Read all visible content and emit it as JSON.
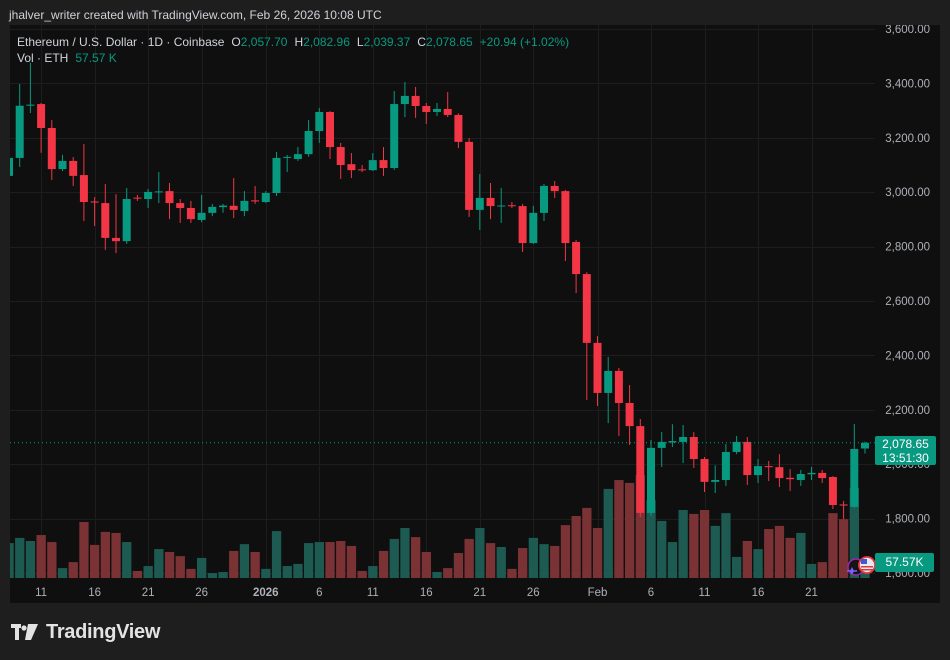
{
  "header": {
    "attribution": "jhalver_writer created with TradingView.com, Feb 26, 2026 10:08 UTC"
  },
  "legend": {
    "symbol": "Ethereum / U.S. Dollar · 1D · Coinbase",
    "o_label": "O",
    "o_value": "2,057.70",
    "h_label": "H",
    "h_value": "2,082.96",
    "l_label": "L",
    "l_value": "2,039.37",
    "c_label": "C",
    "c_value": "2,078.65",
    "change": "+20.94 (+1.02%)",
    "vol_label": "Vol · ETH",
    "vol_value": "57.57 K"
  },
  "price_axis": {
    "labels": [
      {
        "text": "3,600.00",
        "value": 3600
      },
      {
        "text": "3,400.00",
        "value": 3400
      },
      {
        "text": "3,200.00",
        "value": 3200
      },
      {
        "text": "3,000.00",
        "value": 3000
      },
      {
        "text": "2,800.00",
        "value": 2800
      },
      {
        "text": "2,600.00",
        "value": 2600
      },
      {
        "text": "2,400.00",
        "value": 2400
      },
      {
        "text": "2,200.00",
        "value": 2200
      },
      {
        "text": "2,000.00",
        "value": 2000
      },
      {
        "text": "1,800.00",
        "value": 1800
      },
      {
        "text": "1,600.00",
        "value": 1600
      }
    ]
  },
  "time_axis": {
    "labels": [
      {
        "text": "11",
        "index": 3,
        "bold": false
      },
      {
        "text": "16",
        "index": 8,
        "bold": false
      },
      {
        "text": "21",
        "index": 13,
        "bold": false
      },
      {
        "text": "26",
        "index": 18,
        "bold": false
      },
      {
        "text": "2026",
        "index": 24,
        "bold": true
      },
      {
        "text": "6",
        "index": 29,
        "bold": false
      },
      {
        "text": "11",
        "index": 34,
        "bold": false
      },
      {
        "text": "16",
        "index": 39,
        "bold": false
      },
      {
        "text": "21",
        "index": 44,
        "bold": false
      },
      {
        "text": "26",
        "index": 49,
        "bold": false
      },
      {
        "text": "Feb",
        "index": 55,
        "bold": false
      },
      {
        "text": "6",
        "index": 60,
        "bold": false
      },
      {
        "text": "11",
        "index": 65,
        "bold": false
      },
      {
        "text": "16",
        "index": 70,
        "bold": false
      },
      {
        "text": "21",
        "index": 75,
        "bold": false
      }
    ]
  },
  "last_price": {
    "value": 2078.65,
    "price": "2,078.65",
    "countdown": "13:51:30"
  },
  "last_volume": {
    "label": "57.57K"
  },
  "event_icons": [
    {
      "name": "crypto-event-icon",
      "color": "#9c27b0"
    },
    {
      "name": "us-economic-event-icon",
      "color": "#f23645"
    }
  ],
  "colors": {
    "up": "#089981",
    "down": "#f23645",
    "up_volume": "#1d5a52",
    "down_volume": "#7a3235",
    "grid": "#1d1d1d",
    "axis_text": "#aeb1b8",
    "price_line": "#089981"
  },
  "footer": {
    "logo_text": "TradingView"
  },
  "chart_data": {
    "type": "candlestick",
    "title": "Ethereum / U.S. Dollar · 1D · Coinbase",
    "xlabel": "",
    "ylabel": "",
    "ylim": [
      1600,
      3600
    ],
    "grid": true,
    "legend_position": "top-left",
    "x": [
      "Dec 8",
      "Dec 9",
      "Dec 10",
      "Dec 11",
      "Dec 12",
      "Dec 13",
      "Dec 14",
      "Dec 15",
      "Dec 16",
      "Dec 17",
      "Dec 18",
      "Dec 19",
      "Dec 20",
      "Dec 21",
      "Dec 22",
      "Dec 23",
      "Dec 24",
      "Dec 25",
      "Dec 26",
      "Dec 27",
      "Dec 28",
      "Dec 29",
      "Dec 30",
      "Dec 31",
      "Jan 1",
      "Jan 2",
      "Jan 3",
      "Jan 4",
      "Jan 5",
      "Jan 6",
      "Jan 7",
      "Jan 8",
      "Jan 9",
      "Jan 10",
      "Jan 11",
      "Jan 12",
      "Jan 13",
      "Jan 14",
      "Jan 15",
      "Jan 16",
      "Jan 17",
      "Jan 18",
      "Jan 19",
      "Jan 20",
      "Jan 21",
      "Jan 22",
      "Jan 23",
      "Jan 24",
      "Jan 25",
      "Jan 26",
      "Jan 27",
      "Jan 28",
      "Jan 29",
      "Jan 30",
      "Jan 31",
      "Feb 1",
      "Feb 2",
      "Feb 3",
      "Feb 4",
      "Feb 5",
      "Feb 6",
      "Feb 7",
      "Feb 8",
      "Feb 9",
      "Feb 10",
      "Feb 11",
      "Feb 12",
      "Feb 13",
      "Feb 14",
      "Feb 15",
      "Feb 16",
      "Feb 17",
      "Feb 18",
      "Feb 19",
      "Feb 20",
      "Feb 21",
      "Feb 22",
      "Feb 23",
      "Feb 24",
      "Feb 25",
      "Feb 26"
    ],
    "series": [
      {
        "name": "ETH/USD",
        "open": [
          3060,
          3126,
          3318,
          3324,
          3236,
          3085,
          3115,
          3063,
          2966,
          2960,
          2832,
          2820,
          2980,
          2975,
          3000,
          3004,
          2960,
          2942,
          2898,
          2924,
          2945,
          2950,
          2931,
          2970,
          2964,
          2997,
          3126,
          3122,
          3140,
          3225,
          3295,
          3166,
          3103,
          3084,
          3081,
          3118,
          3089,
          3324,
          3354,
          3317,
          3295,
          3306,
          3284,
          3185,
          2935,
          2979,
          2948,
          2952,
          2949,
          2813,
          2924,
          3023,
          3004,
          2817,
          2699,
          2446,
          2262,
          2343,
          2225,
          2140,
          1821,
          2060,
          2080,
          2082,
          2100,
          2019,
          1935,
          1942,
          2045,
          2082,
          1960,
          1993,
          1989,
          1950,
          1942,
          1963,
          1968,
          1953,
          1852,
          1843,
          2057.7
        ],
        "high": [
          3177,
          3398,
          3476,
          3328,
          3265,
          3137,
          3129,
          3177,
          2982,
          3030,
          2993,
          3015,
          2990,
          3012,
          3074,
          3034,
          2975,
          2968,
          2990,
          2957,
          2957,
          3052,
          3004,
          3023,
          3004,
          3148,
          3137,
          3166,
          3265,
          3310,
          3298,
          3181,
          3144,
          3100,
          3144,
          3166,
          3372,
          3405,
          3387,
          3328,
          3328,
          3368,
          3290,
          3199,
          3067,
          3034,
          3015,
          2964,
          2957,
          2950,
          3030,
          3041,
          3008,
          2824,
          2706,
          2471,
          2394,
          2354,
          2291,
          2166,
          2089,
          2118,
          2147,
          2144,
          2118,
          2026,
          1996,
          2074,
          2104,
          2100,
          2019,
          2012,
          2037,
          1982,
          1979,
          1990,
          1979,
          1956,
          1865,
          2148,
          2082.96
        ],
        "low": [
          3045,
          3093,
          3291,
          3145,
          3045,
          3078,
          3023,
          2894,
          2876,
          2788,
          2776,
          2810,
          2968,
          2942,
          2960,
          2901,
          2887,
          2887,
          2890,
          2912,
          2924,
          2905,
          2912,
          2957,
          2960,
          2986,
          3074,
          3115,
          3130,
          3181,
          3122,
          3049,
          3052,
          3074,
          3078,
          3060,
          3082,
          3276,
          3273,
          3251,
          3280,
          3276,
          3162,
          2909,
          2861,
          2901,
          2887,
          2942,
          2780,
          2810,
          2894,
          2979,
          2747,
          2629,
          2236,
          2214,
          2151,
          2104,
          2071,
          1806,
          1810,
          1990,
          2063,
          2004,
          1986,
          1898,
          1894,
          1920,
          2037,
          1924,
          1931,
          1938,
          1916,
          1902,
          1920,
          1942,
          1931,
          1835,
          1798,
          1840,
          2039.37
        ],
        "close": [
          3126,
          3318,
          3322,
          3236,
          3085,
          3115,
          3060,
          2964,
          2962,
          2832,
          2820,
          2975,
          2977,
          3001,
          3003,
          2960,
          2942,
          2901,
          2924,
          2946,
          2951,
          2935,
          2968,
          2966,
          2997,
          3126,
          3130,
          3140,
          3225,
          3295,
          3166,
          3100,
          3081,
          3082,
          3118,
          3089,
          3324,
          3354,
          3317,
          3295,
          3306,
          3284,
          3185,
          2935,
          2979,
          2949,
          2951,
          2949,
          2813,
          2924,
          3023,
          3004,
          2813,
          2699,
          2446,
          2262,
          2343,
          2225,
          2140,
          1821,
          2060,
          2082,
          2085,
          2100,
          2019,
          1935,
          1942,
          2045,
          2082,
          1960,
          1993,
          1989,
          1949,
          1945,
          1964,
          1968,
          1949,
          1850,
          1848,
          2056,
          2078.65
        ]
      },
      {
        "name": "Vol · ETH (K)",
        "values": [
          134,
          154,
          142,
          165,
          138,
          38,
          61,
          215,
          127,
          177,
          173,
          138,
          27,
          46,
          111,
          100,
          84,
          35,
          77,
          19,
          23,
          104,
          130,
          100,
          35,
          180,
          46,
          54,
          134,
          138,
          138,
          142,
          123,
          27,
          46,
          104,
          150,
          192,
          157,
          100,
          23,
          38,
          96,
          150,
          192,
          134,
          119,
          35,
          115,
          154,
          130,
          123,
          203,
          238,
          269,
          192,
          342,
          376,
          365,
          395,
          299,
          219,
          138,
          261,
          246,
          261,
          200,
          249,
          81,
          142,
          111,
          188,
          200,
          154,
          173,
          54,
          61,
          249,
          226,
          345,
          57.57
        ]
      }
    ]
  }
}
